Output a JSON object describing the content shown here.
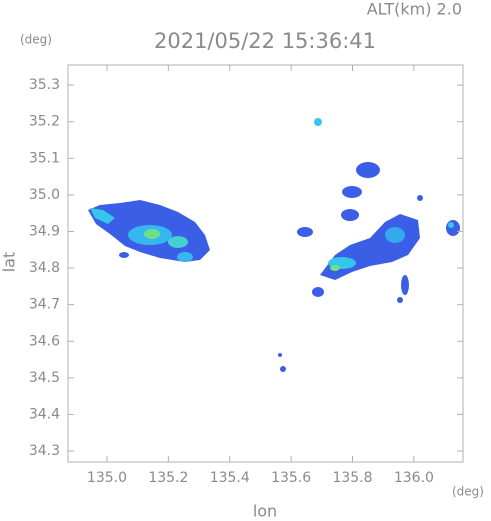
{
  "chart_data": {
    "type": "map",
    "title": "2021/05/22 15:36:41",
    "subtitle": "ALT(km) 2.0",
    "y_unit": "(deg)",
    "x_unit": "(deg)",
    "xlabel": "lon",
    "ylabel": "lat",
    "xlim": [
      134.873,
      136.16
    ],
    "ylim": [
      34.27,
      35.355
    ],
    "xticks": [
      {
        "value": 135,
        "label": "135.0"
      },
      135.2,
      135.4,
      135.6,
      135.8,
      {
        "value": 136,
        "label": "136.0"
      }
    ],
    "yticks": [
      34.3,
      34.4,
      34.5,
      34.6,
      34.7,
      34.8,
      34.9,
      {
        "value": 35,
        "label": "35.0"
      },
      35.1,
      35.2,
      35.3
    ]
  }
}
